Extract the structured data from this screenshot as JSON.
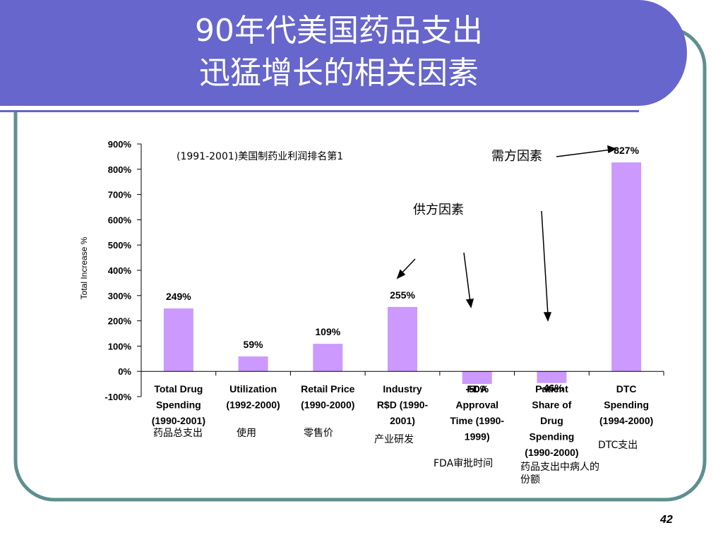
{
  "slide": {
    "title_line1": "90年代美国药品支出",
    "title_line2": "迅猛增长的相关因素",
    "page_number": "42",
    "colors": {
      "header": "#6666cc",
      "frame": "#5f8f8f",
      "bar": "#cc99ff"
    }
  },
  "chart_data": {
    "type": "bar",
    "ylabel": "Total Increase %",
    "ylim": [
      -100,
      900
    ],
    "yticks": [
      "900%",
      "800%",
      "700%",
      "600%",
      "500%",
      "400%",
      "300%",
      "200%",
      "100%",
      "0%",
      "-100%"
    ],
    "ytick_values": [
      900,
      800,
      700,
      600,
      500,
      400,
      300,
      200,
      100,
      0,
      -100
    ],
    "categories": [
      [
        "Total Drug",
        "Spending",
        "(1990-2001)"
      ],
      [
        "Utilization",
        "(1992-2000)"
      ],
      [
        "Retail Price",
        "(1990-2000)"
      ],
      [
        "Industry",
        "R$D (1990-",
        "2001)"
      ],
      [
        "FDA",
        "Approval",
        "Time (1990-",
        "1999)"
      ],
      [
        "Patient",
        "Share of",
        "Drug",
        "Spending",
        "(1990-2000)"
      ],
      [
        "DTC",
        "Spending",
        "(1994-2000)"
      ]
    ],
    "values": [
      249,
      59,
      109,
      255,
      -50,
      -46,
      827
    ],
    "value_labels": [
      "249%",
      "59%",
      "109%",
      "255%",
      "-50%",
      "-46%",
      "827%"
    ],
    "grid": false,
    "legend": "none"
  },
  "annotations": {
    "profit_note": "(1991-2001)美国制药业利润排名第1",
    "demand_factor": "需方因素",
    "supply_factor": "供方因素",
    "cn_total": "药品总支出",
    "cn_utilization": "使用",
    "cn_retail": "零售价",
    "cn_rd": "产业研发",
    "cn_fda": "FDA审批时间",
    "cn_patient": "药品支出中病人的份额",
    "cn_dtc": "DTC支出"
  }
}
